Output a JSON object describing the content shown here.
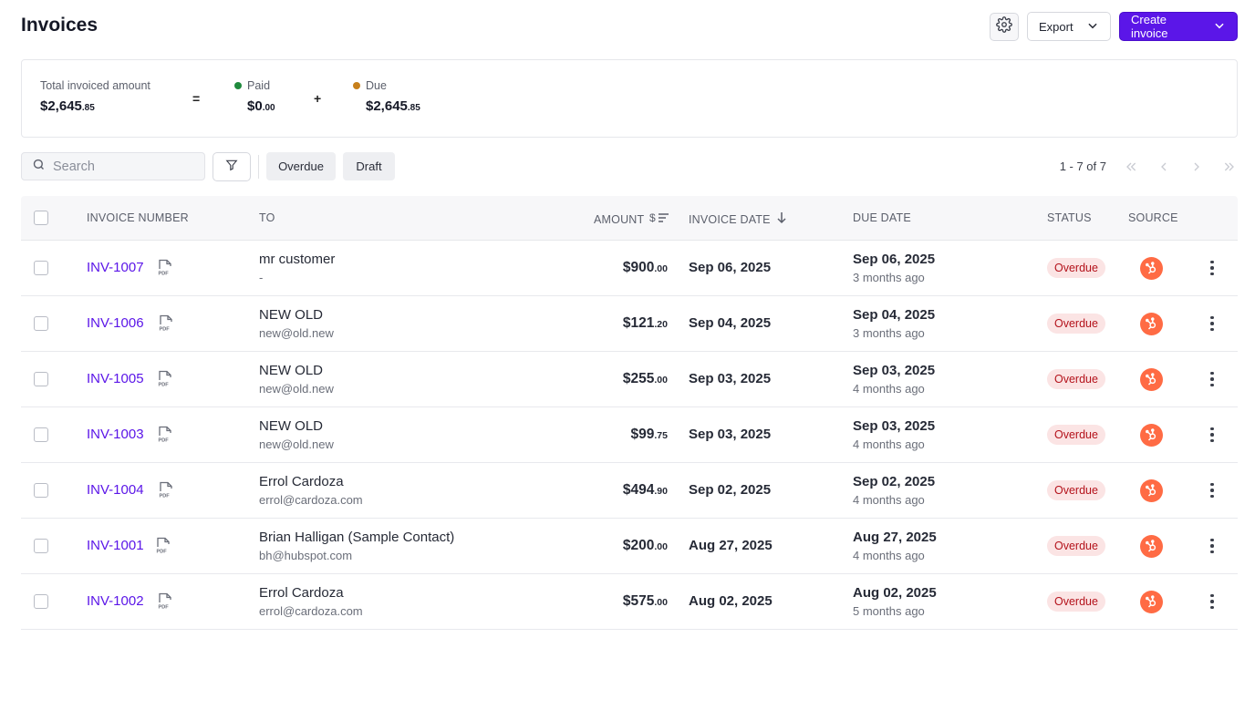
{
  "page": {
    "title": "Invoices"
  },
  "header": {
    "settings_icon": "gear-icon",
    "export_label": "Export",
    "create_label": "Create invoice",
    "accent": "#5b16e8"
  },
  "summary": {
    "total": {
      "label": "Total invoiced amount",
      "whole": "$2,645",
      "cents": ".85"
    },
    "eq": "=",
    "paid": {
      "label": "Paid",
      "whole": "$0",
      "cents": ".00",
      "color": "#1f8a3d"
    },
    "plus": "+",
    "due": {
      "label": "Due",
      "whole": "$2,645",
      "cents": ".85",
      "color": "#c7801b"
    }
  },
  "toolbar": {
    "search_placeholder": "Search",
    "chips": [
      "Overdue",
      "Draft"
    ],
    "pager_text": "1 - 7 of 7"
  },
  "table": {
    "headers": {
      "invoice_number": "INVOICE NUMBER",
      "to": "TO",
      "amount": "AMOUNT",
      "invoice_date": "INVOICE DATE",
      "due_date": "DUE DATE",
      "status": "STATUS",
      "source": "SOURCE"
    },
    "rows": [
      {
        "number": "INV-1007",
        "name": "mr customer",
        "email": "-",
        "whole": "$900",
        "cents": ".00",
        "inv_date": "Sep 06, 2025",
        "due_date": "Sep 06, 2025",
        "due_rel": "3 months ago",
        "status": "Overdue"
      },
      {
        "number": "INV-1006",
        "name": "NEW OLD",
        "email": "new@old.new",
        "whole": "$121",
        "cents": ".20",
        "inv_date": "Sep 04, 2025",
        "due_date": "Sep 04, 2025",
        "due_rel": "3 months ago",
        "status": "Overdue"
      },
      {
        "number": "INV-1005",
        "name": "NEW OLD",
        "email": "new@old.new",
        "whole": "$255",
        "cents": ".00",
        "inv_date": "Sep 03, 2025",
        "due_date": "Sep 03, 2025",
        "due_rel": "4 months ago",
        "status": "Overdue"
      },
      {
        "number": "INV-1003",
        "name": "NEW OLD",
        "email": "new@old.new",
        "whole": "$99",
        "cents": ".75",
        "inv_date": "Sep 03, 2025",
        "due_date": "Sep 03, 2025",
        "due_rel": "4 months ago",
        "status": "Overdue"
      },
      {
        "number": "INV-1004",
        "name": "Errol Cardoza",
        "email": "errol@cardoza.com",
        "whole": "$494",
        "cents": ".90",
        "inv_date": "Sep 02, 2025",
        "due_date": "Sep 02, 2025",
        "due_rel": "4 months ago",
        "status": "Overdue"
      },
      {
        "number": "INV-1001",
        "name": "Brian Halligan (Sample Contact)",
        "email": "bh@hubspot.com",
        "whole": "$200",
        "cents": ".00",
        "inv_date": "Aug 27, 2025",
        "due_date": "Aug 27, 2025",
        "due_rel": "4 months ago",
        "status": "Overdue"
      },
      {
        "number": "INV-1002",
        "name": "Errol Cardoza",
        "email": "errol@cardoza.com",
        "whole": "$575",
        "cents": ".00",
        "inv_date": "Aug 02, 2025",
        "due_date": "Aug 02, 2025",
        "due_rel": "5 months ago",
        "status": "Overdue"
      }
    ]
  }
}
